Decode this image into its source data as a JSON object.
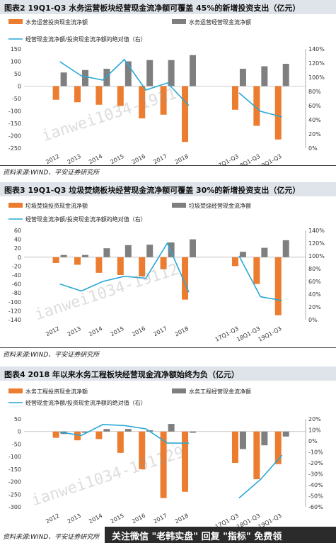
{
  "panels": [
    {
      "title": "图表2    19Q1-Q3 水务运营板块经营现金流净额可覆盖 45%的新增投资支出（亿元）",
      "source": "资料来源:WIND、平安证券研究所",
      "chart_data": {
        "type": "bar+line",
        "categories": [
          "2012",
          "2013",
          "2014",
          "2015",
          "2016",
          "2017",
          "2018",
          "17Q1-Q3",
          "18Q1-Q3",
          "19Q1-Q3"
        ],
        "series": [
          {
            "name": "水务运营投资现金流净额",
            "kind": "bar",
            "axis": "left",
            "color": "#ec7c30",
            "values": [
              -55,
              -65,
              -75,
              -80,
              -130,
              -115,
              -225,
              -95,
              -160,
              -215
            ]
          },
          {
            "name": "水务运营经营现金流净额",
            "kind": "bar",
            "axis": "left",
            "color": "#7f7f7f",
            "values": [
              55,
              65,
              70,
              100,
              105,
              105,
              125,
              70,
              80,
              90
            ]
          },
          {
            "name": "经营现金流净额/投资现金流净额的绝对值（右）",
            "kind": "line",
            "axis": "right",
            "color": "#2aa7d6",
            "values": [
              1.22,
              1.02,
              0.96,
              1.25,
              0.82,
              0.92,
              0.6,
              0.78,
              0.52,
              0.44
            ]
          }
        ],
        "left_axis": {
          "ticks": [
            150,
            100,
            50,
            0,
            -50,
            -100,
            -150,
            -200,
            -250
          ],
          "min": -250,
          "max": 150
        },
        "right_axis": {
          "ticks": [
            "140%",
            "120%",
            "100%",
            "80%",
            "60%",
            "40%",
            "20%",
            "0%"
          ],
          "min": 0,
          "max": 1.4
        }
      }
    },
    {
      "title": "图表3    19Q1-Q3 垃圾焚烧板块经营现金流净额可覆盖 30%的新增投资支出（亿元）",
      "source": "资料来源:WIND、平安证券研究所",
      "chart_data": {
        "type": "bar+line",
        "categories": [
          "2012",
          "2013",
          "2014",
          "2015",
          "2016",
          "2017",
          "2018",
          "17Q1-Q3",
          "18Q1-Q3",
          "19Q1-Q3"
        ],
        "series": [
          {
            "name": "垃圾焚烧投资现金流净额",
            "kind": "bar",
            "axis": "left",
            "color": "#ec7c30",
            "values": [
              -13,
              -17,
              -35,
              -40,
              -43,
              -27,
              -95,
              -20,
              -60,
              -130
            ]
          },
          {
            "name": "垃圾焚烧经营现金流净额",
            "kind": "bar",
            "axis": "left",
            "color": "#7f7f7f",
            "values": [
              5,
              5,
              20,
              27,
              28,
              33,
              40,
              12,
              21,
              38
            ]
          },
          {
            "name": "经营现金流净额/投资现金流净额的绝对值（右）",
            "kind": "line",
            "axis": "right",
            "color": "#2aa7d6",
            "values": [
              0.56,
              0.45,
              0.6,
              0.68,
              0.65,
              1.2,
              0.43,
              1.0,
              0.36,
              0.3
            ]
          }
        ],
        "left_axis": {
          "ticks": [
            60,
            40,
            20,
            0,
            -20,
            -40,
            -60,
            -80,
            -100,
            -120,
            -140
          ],
          "min": -140,
          "max": 60
        },
        "right_axis": {
          "ticks": [
            "140%",
            "120%",
            "100%",
            "80%",
            "60%",
            "40%",
            "20%",
            "0%"
          ],
          "min": 0,
          "max": 1.4
        }
      }
    },
    {
      "title": "图表4    2018 年以来水务工程板块经营现金流净额始终为负（亿元）",
      "source": "资料来源:WIND、平安证券研究所",
      "chart_data": {
        "type": "bar+line",
        "categories": [
          "2012",
          "2013",
          "2014",
          "2015",
          "2016",
          "2017",
          "2018",
          "17Q1-Q3",
          "18Q1-Q3",
          "19Q1-Q3"
        ],
        "series": [
          {
            "name": "水务工程投资现金流净额",
            "kind": "bar",
            "axis": "left",
            "color": "#ec7c30",
            "values": [
              -25,
              -35,
              -30,
              -85,
              -150,
              -265,
              -240,
              -125,
              -190,
              -130
            ]
          },
          {
            "name": "水务工程经营现金流净额",
            "kind": "bar",
            "axis": "left",
            "color": "#7f7f7f",
            "values": [
              -10,
              -5,
              10,
              10,
              5,
              30,
              -5,
              -70,
              -55,
              -20
            ]
          },
          {
            "name": "经营现金流净额/投资现金流净额的绝对值（右）",
            "kind": "line",
            "axis": "right",
            "color": "#2aa7d6",
            "values": [
              0.08,
              0.05,
              0.15,
              0.14,
              0.11,
              -0.02,
              -0.02,
              -0.52,
              -0.35,
              -0.13
            ]
          }
        ],
        "left_axis": {
          "ticks": [
            50,
            0,
            -50,
            -100,
            -150,
            -200,
            -250,
            -300
          ],
          "min": -300,
          "max": 50
        },
        "right_axis": {
          "ticks": [
            "20%",
            "10%",
            "0%",
            "-10%",
            "-20%",
            "-30%",
            "-40%",
            "-50%",
            "-60%"
          ],
          "min": -0.6,
          "max": 0.2
        }
      }
    }
  ],
  "footer": {
    "text": "关注微信 \"老韩实盘\" 回复 \"指标\" 免费领"
  },
  "watermarks": [
    "ianwei1034-1911",
    "ianwei1034-19112",
    "ianwei1034-191129"
  ]
}
